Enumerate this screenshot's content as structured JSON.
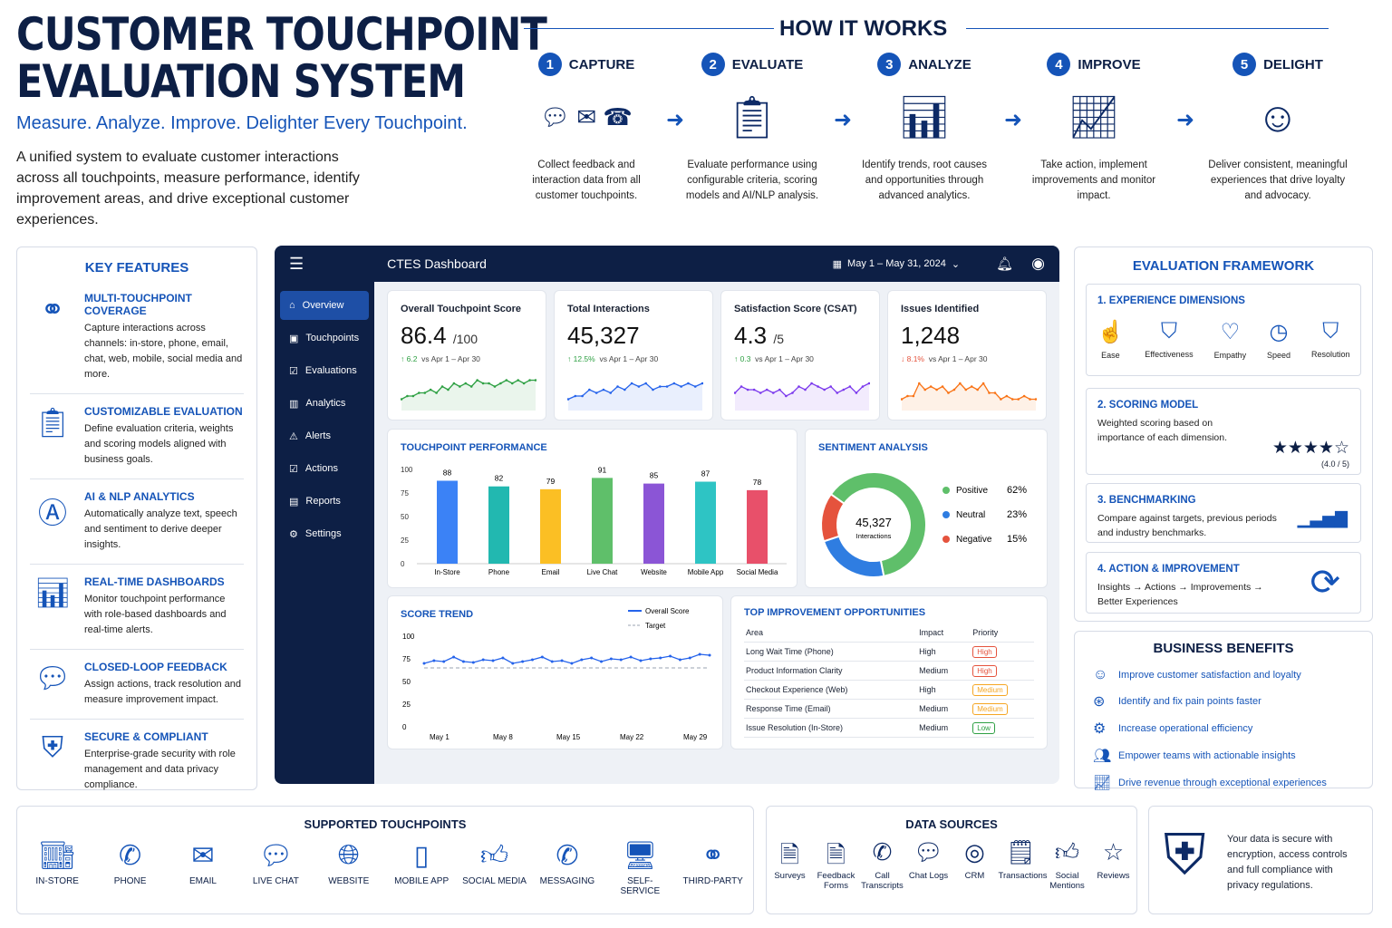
{
  "header": {
    "title_line1": "CUSTOMER TOUCHPOINT",
    "title_line2": "EVALUATION SYSTEM",
    "subtitle": "Measure. Analyze. Improve. Delighter Every Touchpoint.",
    "description": "A unified system to evaluate customer interactions across all touchpoints, measure performance, identify improvement areas, and drive exceptional customer experiences."
  },
  "how_it_works": {
    "title": "HOW IT WORKS",
    "steps": [
      {
        "num": "1",
        "label": "CAPTURE",
        "icon": "channels-icon",
        "text": "Collect feedback and interaction data from all customer touchpoints."
      },
      {
        "num": "2",
        "label": "EVALUATE",
        "icon": "clipboard-check-icon",
        "text": "Evaluate performance using configurable criteria, scoring models and AI/NLP analysis."
      },
      {
        "num": "3",
        "label": "ANALYZE",
        "icon": "bar-chart-search-icon",
        "text": "Identify trends, root causes and opportunities through advanced analytics."
      },
      {
        "num": "4",
        "label": "IMPROVE",
        "icon": "trend-up-icon",
        "text": "Take action, implement improvements and monitor impact."
      },
      {
        "num": "5",
        "label": "DELIGHT",
        "icon": "star-person-icon",
        "text": "Deliver consistent, meaningful experiences that drive loyalty and advocacy."
      }
    ]
  },
  "key_features": {
    "title": "KEY FEATURES",
    "items": [
      {
        "title": "MULTI-TOUCHPOINT COVERAGE",
        "text": "Capture interactions across channels: in-store, phone, email, chat, web, mobile, social media and more.",
        "icon": "network-icon"
      },
      {
        "title": "CUSTOMIZABLE EVALUATION",
        "text": "Define evaluation criteria, weights and scoring models aligned with business goals.",
        "icon": "clipboard-icon"
      },
      {
        "title": "AI & NLP ANALYTICS",
        "text": "Automatically analyze text, speech and sentiment to derive deeper insights.",
        "icon": "ai-chip-icon"
      },
      {
        "title": "REAL-TIME DASHBOARDS",
        "text": "Monitor touchpoint performance with role-based dashboards and real-time alerts.",
        "icon": "dashboard-icon"
      },
      {
        "title": "CLOSED-LOOP FEEDBACK",
        "text": "Assign actions, track resolution and measure improvement impact.",
        "icon": "chat-icon"
      },
      {
        "title": "SECURE & COMPLIANT",
        "text": "Enterprise-grade security with role management and data privacy compliance.",
        "icon": "shield-lock-icon"
      }
    ]
  },
  "dashboard": {
    "title": "CTES Dashboard",
    "date_range": "May 1 – May 31, 2024",
    "nav": [
      "Overview",
      "Touchpoints",
      "Evaluations",
      "Analytics",
      "Alerts",
      "Actions",
      "Reports",
      "Settings"
    ],
    "kpis": [
      {
        "title": "Overall Touchpoint Score",
        "value": "86.4",
        "unit": "/100",
        "delta": "↑ 6.2",
        "compare": "vs Apr 1 – Apr 30",
        "color": "#2ea043",
        "trend": [
          3,
          4,
          4,
          5,
          5,
          6,
          5,
          7,
          6,
          8,
          7,
          8,
          7,
          9,
          8,
          8,
          7,
          8,
          9,
          8,
          9,
          8,
          9,
          9
        ]
      },
      {
        "title": "Total Interactions",
        "value": "45,327",
        "unit": "",
        "delta": "↑ 12.5%",
        "compare": "vs Apr 1 – Apr 30",
        "color": "#2563eb",
        "trend": [
          3,
          4,
          4,
          6,
          5,
          6,
          5,
          7,
          6,
          8,
          7,
          8,
          6,
          7,
          7,
          8,
          7,
          8,
          7,
          8
        ]
      },
      {
        "title": "Satisfaction Score (CSAT)",
        "value": "4.3",
        "unit": "/5",
        "delta": "↑ 0.3",
        "compare": "vs Apr 1 – Apr 30",
        "color": "#7c3aed",
        "trend": [
          5,
          7,
          6,
          6,
          5,
          6,
          5,
          6,
          4,
          5,
          7,
          6,
          8,
          7,
          6,
          7,
          5,
          6,
          7,
          5,
          7,
          8
        ]
      },
      {
        "title": "Issues Identified",
        "value": "1,248",
        "unit": "",
        "delta": "↓ 8.1%",
        "compare": "vs Apr 1 – Apr 30",
        "color": "#f97316",
        "trend": [
          3,
          4,
          4,
          8,
          6,
          7,
          6,
          7,
          5,
          6,
          8,
          6,
          7,
          6,
          8,
          5,
          5,
          3,
          4,
          3,
          3,
          4,
          3,
          3
        ]
      }
    ],
    "delta_colors": [
      "#2ea043",
      "#2ea043",
      "#2ea043",
      "#e5533d"
    ]
  },
  "chart_data": [
    {
      "type": "bar",
      "title": "TOUCHPOINT PERFORMANCE",
      "categories": [
        "In-Store",
        "Phone",
        "Email",
        "Live Chat",
        "Website",
        "Mobile App",
        "Social Media"
      ],
      "values": [
        88,
        82,
        79,
        91,
        85,
        87,
        78
      ],
      "colors": [
        "#3b82f6",
        "#22b8b0",
        "#fbbf24",
        "#5fbf6a",
        "#8b55d6",
        "#2ec4c4",
        "#e8506a"
      ],
      "yticks": [
        0,
        25,
        50,
        75,
        100
      ],
      "ylim": [
        0,
        100
      ]
    },
    {
      "type": "pie",
      "title": "SENTIMENT ANALYSIS",
      "center_value": "45,327",
      "center_label": "Interactions",
      "slices": [
        {
          "label": "Positive",
          "value": 62,
          "pct": "62%",
          "color": "#5fbf6a"
        },
        {
          "label": "Neutral",
          "value": 23,
          "pct": "23%",
          "color": "#2f7de1"
        },
        {
          "label": "Negative",
          "value": 15,
          "pct": "15%",
          "color": "#e5533d"
        }
      ]
    },
    {
      "type": "line",
      "title": "SCORE TREND",
      "series": [
        {
          "name": "Overall Score",
          "color": "#2563eb",
          "values": [
            70,
            73,
            72,
            77,
            72,
            71,
            74,
            73,
            76,
            70,
            72,
            74,
            77,
            72,
            73,
            70,
            74,
            76,
            72,
            75,
            74,
            77,
            73,
            75,
            76,
            78,
            74,
            76,
            80,
            79
          ]
        },
        {
          "name": "Target",
          "color": "#9aa3b2",
          "values": [
            65
          ]
        }
      ],
      "xticks": [
        "May 1",
        "May 8",
        "May 15",
        "May 22",
        "May 29"
      ],
      "yticks": [
        0,
        25,
        50,
        75,
        100
      ],
      "ylim": [
        0,
        100
      ]
    },
    {
      "type": "table",
      "title": "TOP IMPROVEMENT OPPORTUNITIES",
      "columns": [
        "Area",
        "Impact",
        "Priority"
      ],
      "rows": [
        [
          "Long Wait Time (Phone)",
          "High",
          "High"
        ],
        [
          "Product Information Clarity",
          "Medium",
          "High"
        ],
        [
          "Checkout Experience (Web)",
          "High",
          "Medium"
        ],
        [
          "Response Time (Email)",
          "Medium",
          "Medium"
        ],
        [
          "Issue Resolution (In-Store)",
          "Medium",
          "Low"
        ]
      ],
      "priority_colors": {
        "High": "#e5533d",
        "Medium": "#f5a623",
        "Low": "#2ea043"
      }
    }
  ],
  "framework": {
    "title": "EVALUATION FRAMEWORK",
    "dims_title": "1.  EXPERIENCE DIMENSIONS",
    "dims": [
      "Ease",
      "Effectiveness",
      "Empathy",
      "Speed",
      "Resolution"
    ],
    "scoring_title": "2.  SCORING MODEL",
    "scoring_text": "Weighted scoring based on importance of each dimension.",
    "stars": "★★★★☆",
    "rating": "(4.0 / 5)",
    "bench_title": "3.  BENCHMARKING",
    "bench_text": "Compare against targets, previous periods and industry benchmarks.",
    "action_title": "4.  ACTION & IMPROVEMENT",
    "action_text": "Insights → Actions → Improvements → Better Experiences"
  },
  "benefits": {
    "title": "BUSINESS BENEFITS",
    "items": [
      "Improve customer satisfaction and loyalty",
      "Identify and fix pain points faster",
      "Increase operational efficiency",
      "Empower teams with actionable insights",
      "Drive revenue through exceptional experiences"
    ]
  },
  "touchpoints": {
    "title": "SUPPORTED TOUCHPOINTS",
    "items": [
      "IN-STORE",
      "PHONE",
      "EMAIL",
      "LIVE CHAT",
      "WEBSITE",
      "MOBILE APP",
      "SOCIAL MEDIA",
      "MESSAGING",
      "SELF-SERVICE",
      "THIRD-PARTY"
    ]
  },
  "data_sources": {
    "title": "DATA SOURCES",
    "items": [
      "Surveys",
      "Feedback Forms",
      "Call Transcripts",
      "Chat Logs",
      "CRM",
      "Transactions",
      "Social Mentions",
      "Reviews"
    ]
  },
  "security": {
    "text": "Your data is secure with encryption, access controls and full compliance with privacy regulations."
  }
}
